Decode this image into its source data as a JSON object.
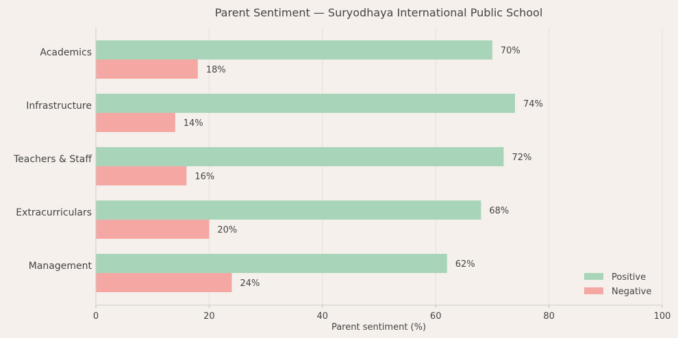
{
  "chart_data": {
    "type": "bar",
    "orientation": "horizontal",
    "title": "Parent Sentiment — Suryodhaya International Public School",
    "xlabel": "Parent sentiment (%)",
    "ylabel": "",
    "xlim": [
      0,
      100
    ],
    "xticks": [
      "0",
      "20",
      "40",
      "60",
      "80",
      "100"
    ],
    "categories": [
      "Academics",
      "Infrastructure",
      "Teachers & Staff",
      "Extracurriculars",
      "Management"
    ],
    "series": [
      {
        "name": "Positive",
        "color": "#a8d5b9",
        "values": [
          70,
          74,
          72,
          68,
          62
        ],
        "labels": [
          "70%",
          "74%",
          "72%",
          "68%",
          "62%"
        ]
      },
      {
        "name": "Negative",
        "color": "#f5a7a3",
        "values": [
          18,
          14,
          16,
          20,
          24
        ],
        "labels": [
          "18%",
          "14%",
          "16%",
          "20%",
          "24%"
        ]
      }
    ],
    "grid": "vertical",
    "legend_position": "bottom-right"
  }
}
